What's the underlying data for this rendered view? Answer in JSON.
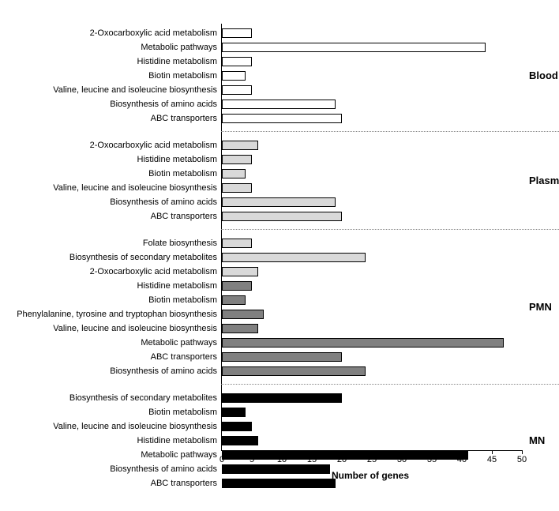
{
  "chart": {
    "type": "bar-horizontal",
    "x_axis_title": "Number of genes",
    "xlim": [
      0,
      50
    ],
    "xtick_step": 5,
    "xticks": [
      0,
      5,
      10,
      15,
      20,
      25,
      30,
      35,
      40,
      45,
      50
    ],
    "background_color": "#ffffff",
    "axis_color": "#000000",
    "divider_color": "#888888",
    "label_fontsize": 11,
    "group_label_fontsize": 13,
    "groups": [
      {
        "label": "Blood",
        "bar_fill": "#ffffff",
        "bar_stroke": "#000000",
        "items": [
          {
            "label": "2-Oxocarboxylic acid metabolism",
            "value": 5
          },
          {
            "label": "Metabolic pathways",
            "value": 44
          },
          {
            "label": "Histidine metabolism",
            "value": 5
          },
          {
            "label": "Biotin metabolism",
            "value": 4
          },
          {
            "label": "Valine, leucine and isoleucine biosynthesis",
            "value": 5
          },
          {
            "label": "Biosynthesis of amino acids",
            "value": 19
          },
          {
            "label": "ABC transporters",
            "value": 20
          }
        ]
      },
      {
        "label": "Plasma",
        "bar_fill": "#d9d9d9",
        "bar_stroke": "#000000",
        "items": [
          {
            "label": "2-Oxocarboxylic acid metabolism",
            "value": 6
          },
          {
            "label": "Histidine metabolism",
            "value": 5
          },
          {
            "label": "Biotin metabolism",
            "value": 4
          },
          {
            "label": "Valine, leucine and isoleucine biosynthesis",
            "value": 5
          },
          {
            "label": "Biosynthesis of amino acids",
            "value": 19
          },
          {
            "label": "ABC transporters",
            "value": 20
          }
        ]
      },
      {
        "label": "PMN",
        "bar_fill": "#808080",
        "bar_stroke": "#000000",
        "items": [
          {
            "label": "Folate biosynthesis",
            "value": 5,
            "fill": "#d9d9d9"
          },
          {
            "label": "Biosynthesis of secondary metabolites",
            "value": 24,
            "fill": "#d9d9d9"
          },
          {
            "label": "2-Oxocarboxylic acid metabolism",
            "value": 6,
            "fill": "#d9d9d9"
          },
          {
            "label": "Histidine metabolism",
            "value": 5
          },
          {
            "label": "Biotin metabolism",
            "value": 4
          },
          {
            "label": "Phenylalanine, tyrosine and tryptophan biosynthesis",
            "value": 7
          },
          {
            "label": "Valine, leucine and isoleucine biosynthesis",
            "value": 6
          },
          {
            "label": "Metabolic pathways",
            "value": 47
          },
          {
            "label": "ABC transporters",
            "value": 20
          },
          {
            "label": "Biosynthesis of amino acids",
            "value": 24
          }
        ]
      },
      {
        "label": "MN",
        "bar_fill": "#000000",
        "bar_stroke": "#000000",
        "items": [
          {
            "label": "Biosynthesis of secondary metabolites",
            "value": 20
          },
          {
            "label": "Biotin metabolism",
            "value": 4
          },
          {
            "label": "Valine, leucine and isoleucine biosynthesis",
            "value": 5
          },
          {
            "label": "Histidine metabolism",
            "value": 6
          },
          {
            "label": "Metabolic pathways",
            "value": 41
          },
          {
            "label": "Biosynthesis of amino acids",
            "value": 18
          },
          {
            "label": "ABC transporters",
            "value": 19
          }
        ]
      }
    ]
  }
}
